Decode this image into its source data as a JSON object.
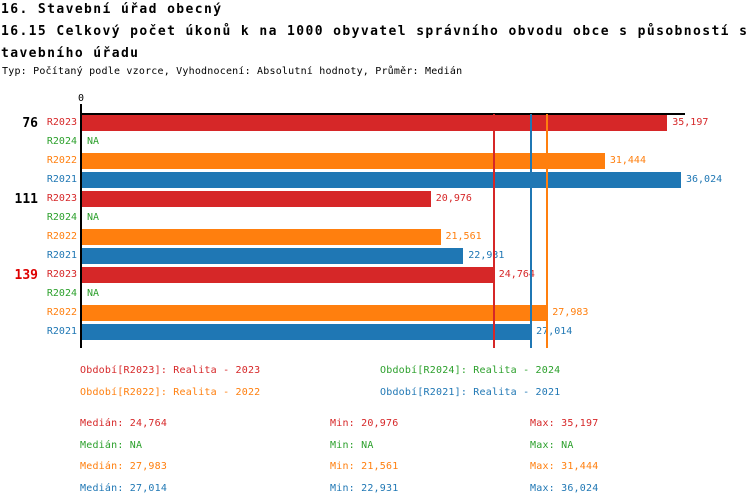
{
  "header": {
    "title_line1": "16. Stavební úřad obecný",
    "title_line2": "16.15 Celkový počet úkonů k na 1000 obyvatel správního obvodu obce s působností s",
    "title_line3": "tavebního úřadu",
    "subtitle": "Typ: Počítaný podle vzorce, Vyhodnocení: Absolutní hodnoty, Průměr: Medián"
  },
  "colors": {
    "R2023": "#d62728",
    "R2024": "#2ca02c",
    "R2022": "#ff7f0e",
    "R2021": "#1f77b4",
    "group_number": "#000000",
    "group_number_highlight": "#dd0000",
    "axis": "#000000"
  },
  "chart_data": {
    "type": "bar",
    "orientation": "horizontal",
    "title": "16.15 Celkový počet úkonů k na 1000 obyvatel správního obvodu obce s působností stavebního úřadu",
    "x_axis": {
      "min": 0,
      "max": 36024,
      "tick_labels": [
        "0"
      ],
      "grid": false
    },
    "row_order": [
      "R2023",
      "R2024",
      "R2022",
      "R2021"
    ],
    "groups": [
      {
        "label": "76",
        "highlighted": false,
        "bars": [
          {
            "series": "R2023",
            "value": 35197,
            "display": "35,197"
          },
          {
            "series": "R2024",
            "value": null,
            "display": "NA"
          },
          {
            "series": "R2022",
            "value": 31444,
            "display": "31,444"
          },
          {
            "series": "R2021",
            "value": 36024,
            "display": "36,024"
          }
        ]
      },
      {
        "label": "111",
        "highlighted": false,
        "bars": [
          {
            "series": "R2023",
            "value": 20976,
            "display": "20,976"
          },
          {
            "series": "R2024",
            "value": null,
            "display": "NA"
          },
          {
            "series": "R2022",
            "value": 21561,
            "display": "21,561"
          },
          {
            "series": "R2021",
            "value": 22931,
            "display": "22,931"
          }
        ]
      },
      {
        "label": "139",
        "highlighted": true,
        "bars": [
          {
            "series": "R2023",
            "value": 24764,
            "display": "24,764"
          },
          {
            "series": "R2024",
            "value": null,
            "display": "NA"
          },
          {
            "series": "R2022",
            "value": 27983,
            "display": "27,983"
          },
          {
            "series": "R2021",
            "value": 27014,
            "display": "27,014"
          }
        ]
      }
    ],
    "median_lines": [
      {
        "series": "R2023",
        "value": 24764
      },
      {
        "series": "R2021",
        "value": 27014
      },
      {
        "series": "R2022",
        "value": 27983
      }
    ]
  },
  "legend": [
    {
      "series": "R2023",
      "label": "Období[R2023]: Realita - 2023"
    },
    {
      "series": "R2024",
      "label": "Období[R2024]: Realita - 2024"
    },
    {
      "series": "R2022",
      "label": "Období[R2022]: Realita - 2022"
    },
    {
      "series": "R2021",
      "label": "Období[R2021]: Realita - 2021"
    }
  ],
  "stats": {
    "labels": {
      "median": "Medián",
      "min": "Min",
      "max": "Max"
    },
    "rows": [
      {
        "series": "R2023",
        "median": "24,764",
        "min": "20,976",
        "max": "35,197"
      },
      {
        "series": "R2024",
        "median": "NA",
        "min": "NA",
        "max": "NA"
      },
      {
        "series": "R2022",
        "median": "27,983",
        "min": "21,561",
        "max": "31,444"
      },
      {
        "series": "R2021",
        "median": "27,014",
        "min": "22,931",
        "max": "36,024"
      }
    ]
  }
}
